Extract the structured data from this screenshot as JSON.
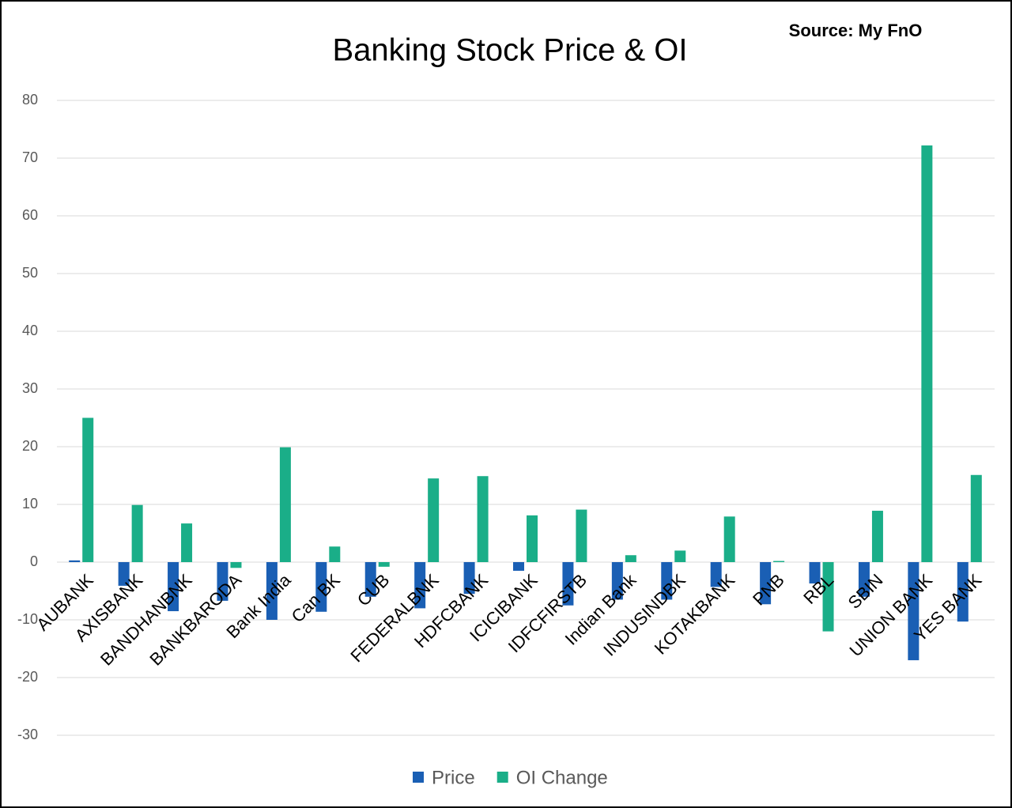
{
  "chart_data": {
    "type": "bar",
    "title": "Banking Stock Price & OI",
    "annotation": "Source: My FnO",
    "categories": [
      "AUBANK",
      "AXISBANK",
      "BANDHANBNK",
      "BANKBARODA",
      "Bank India",
      "Can BK",
      "CUB",
      "FEDERALBNK",
      "HDFCBANK",
      "ICICIBANK",
      "IDFCFIRSTB",
      "Indian Bank",
      "INDUSINDBK",
      "KOTAKBANK",
      "PNB",
      "RBL",
      "SBIN",
      "UNION BANK",
      "YES BANK"
    ],
    "series": [
      {
        "name": "Price",
        "color": "#1a5fb4",
        "values": [
          0.3,
          -4.1,
          -8.5,
          -6.7,
          -10,
          -8.6,
          -6,
          -8,
          -5.5,
          -1.5,
          -7.5,
          -6.5,
          -6.5,
          -4.3,
          -7.3,
          -3.7,
          -6,
          -17,
          -10.3
        ]
      },
      {
        "name": "OI Change",
        "color": "#1aae88",
        "values": [
          25,
          9.9,
          6.7,
          -1,
          19.9,
          2.7,
          -0.8,
          14.5,
          14.9,
          8.1,
          9.1,
          1.2,
          2,
          7.9,
          0.2,
          -12,
          8.9,
          72.2,
          15.1
        ]
      }
    ],
    "ylim": [
      -30,
      80
    ],
    "yticks": [
      -30,
      -20,
      -10,
      0,
      10,
      20,
      30,
      40,
      50,
      60,
      70,
      80
    ],
    "grid": true,
    "legend": "bottom"
  }
}
